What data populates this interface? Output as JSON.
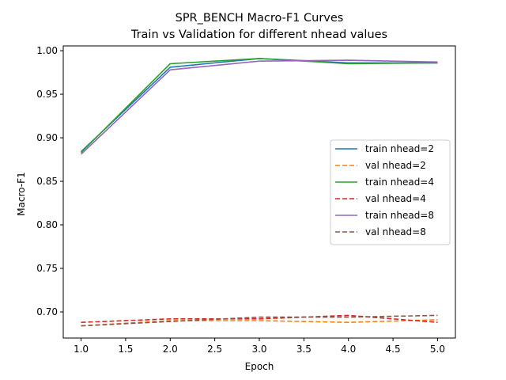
{
  "chart_data": {
    "type": "line",
    "title": "SPR_BENCH Macro-F1 Curves",
    "subtitle": "Train vs Validation for different nhead values",
    "xlabel": "Epoch",
    "ylabel": "Macro-F1",
    "xlim": [
      0.8,
      5.2
    ],
    "ylim": [
      0.67,
      1.0055
    ],
    "xticks": [
      "1.0",
      "1.5",
      "2.0",
      "2.5",
      "3.0",
      "3.5",
      "4.0",
      "4.5",
      "5.0"
    ],
    "yticks": [
      "0.70",
      "0.75",
      "0.80",
      "0.85",
      "0.90",
      "0.95",
      "1.00"
    ],
    "grid": false,
    "legend_position": "center-right",
    "x": [
      1,
      2,
      3,
      4,
      5
    ],
    "series": [
      {
        "name": "train nhead=2",
        "color": "#1f77b4",
        "dash": "solid",
        "values": [
          0.884,
          0.981,
          0.991,
          0.986,
          0.986
        ]
      },
      {
        "name": "val nhead=2",
        "color": "#ff7f0e",
        "dash": "dashed",
        "values": [
          0.684,
          0.69,
          0.69,
          0.688,
          0.691
        ]
      },
      {
        "name": "train nhead=4",
        "color": "#2ca02c",
        "dash": "solid",
        "values": [
          0.883,
          0.985,
          0.991,
          0.985,
          0.986
        ]
      },
      {
        "name": "val nhead=4",
        "color": "#d62728",
        "dash": "dashed",
        "values": [
          0.688,
          0.692,
          0.692,
          0.696,
          0.688
        ]
      },
      {
        "name": "train nhead=8",
        "color": "#9467bd",
        "dash": "solid",
        "values": [
          0.881,
          0.978,
          0.988,
          0.989,
          0.987
        ]
      },
      {
        "name": "val nhead=8",
        "color": "#8c564b",
        "dash": "dashed",
        "values": [
          0.684,
          0.689,
          0.694,
          0.694,
          0.696
        ]
      }
    ]
  }
}
